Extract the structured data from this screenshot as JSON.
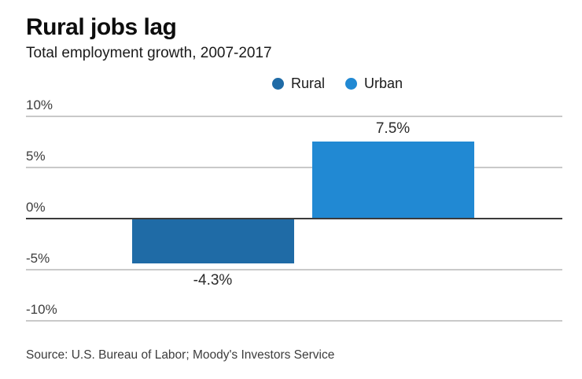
{
  "header": {
    "title": "Rural jobs lag",
    "subtitle": "Total employment growth, 2007-2017"
  },
  "legend": {
    "items": [
      {
        "label": "Rural",
        "color": "#1f6ba6"
      },
      {
        "label": "Urban",
        "color": "#2189d3"
      }
    ]
  },
  "source": {
    "text": "Source: U.S. Bureau of Labor; Moody's Investors Service"
  },
  "chart_data": {
    "type": "bar",
    "title": "Rural jobs lag",
    "subtitle": "Total employment growth, 2007-2017",
    "categories": [
      "Rural",
      "Urban"
    ],
    "values": [
      -4.3,
      7.5
    ],
    "data_labels": [
      "-4.3%",
      "7.5%"
    ],
    "bar_colors": [
      "#1f6ba6",
      "#2189d3"
    ],
    "xlabel": "",
    "ylabel": "",
    "ylim": [
      -10,
      10
    ],
    "yticks": [
      10,
      5,
      0,
      -5,
      -10
    ],
    "ytick_labels": [
      "10%",
      "5%",
      "0%",
      "-5%",
      "-10%"
    ],
    "grid": true,
    "legend_position": "top",
    "colors": {
      "grid_line": "#c9c9c9",
      "zero_line": "#3b3b3b",
      "tick_text": "#3d3d3d"
    }
  }
}
